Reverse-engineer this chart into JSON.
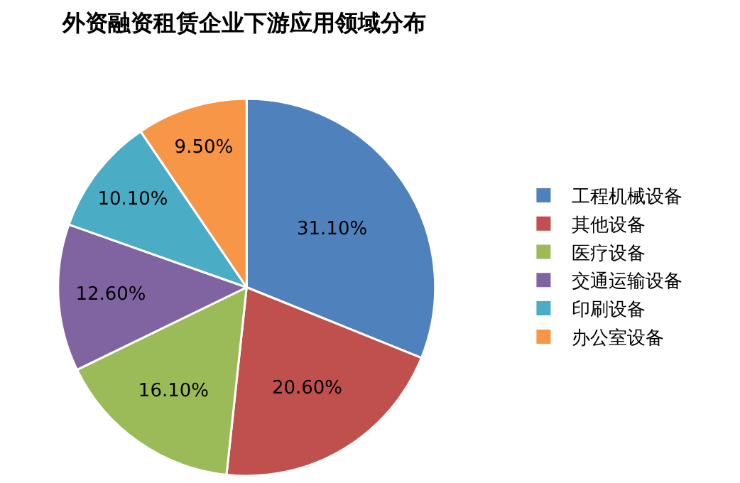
{
  "chart_data": {
    "type": "pie",
    "title": "外资融资租赁企业下游应用领域分布",
    "categories": [
      "工程机械设备",
      "其他设备",
      "医疗设备",
      "交通运输设备",
      "印刷设备",
      "办公室设备"
    ],
    "values": [
      31.1,
      20.6,
      16.1,
      12.6,
      10.1,
      9.5
    ],
    "value_labels": [
      "31.10%",
      "20.60%",
      "16.10%",
      "12.60%",
      "10.10%",
      "9.50%"
    ],
    "colors": [
      "#4f81bd",
      "#c0504d",
      "#9bbb59",
      "#8064a2",
      "#4bacc6",
      "#f79646"
    ],
    "legend": "right"
  }
}
